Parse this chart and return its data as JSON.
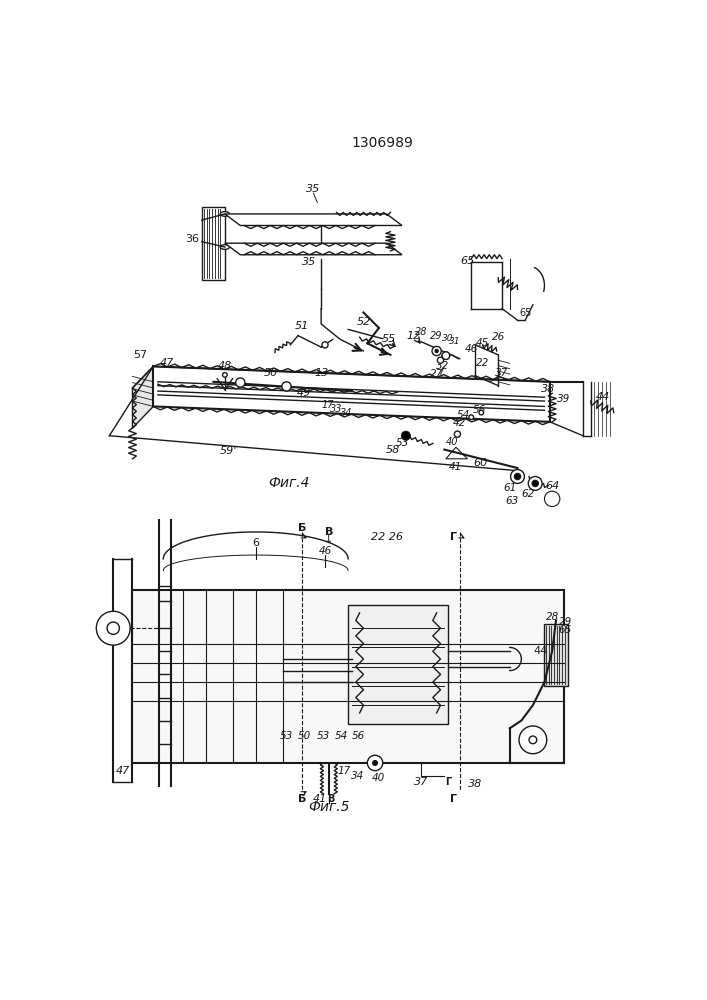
{
  "title": "1306989",
  "bg_color": "#ffffff",
  "fig_width": 7.07,
  "fig_height": 10.0,
  "dpi": 100,
  "fig4_label": "Фиг.4",
  "fig5_label": "Фиг.5",
  "line_color": "#1a1a1a",
  "label_color": "#1a1a1a"
}
